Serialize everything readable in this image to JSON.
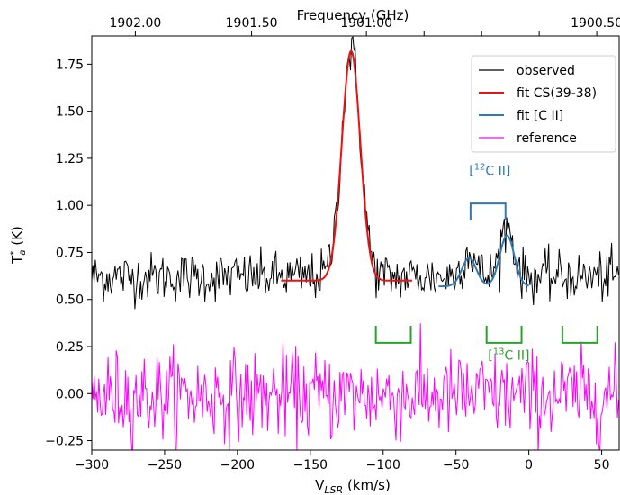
{
  "chart_data": {
    "type": "line",
    "xlabel_main": "V",
    "xlabel_sub": "LSR",
    "xlabel_unit": " (km/s)",
    "ylabel_main": "T",
    "ylabel_sup": "*",
    "ylabel_sub": "a",
    "ylabel_unit": "  (K)",
    "top_xlabel": "Frequency (GHz)",
    "xlim": [
      -300,
      62
    ],
    "ylim": [
      -0.3,
      1.9
    ],
    "x_ticks": [
      -300,
      -250,
      -200,
      -150,
      -100,
      -50,
      0,
      50
    ],
    "x_tick_labels": [
      "−300",
      "−250",
      "−200",
      "−150",
      "−100",
      "−50",
      "0",
      "50"
    ],
    "y_ticks": [
      -0.25,
      0.0,
      0.25,
      0.5,
      0.75,
      1.0,
      1.25,
      1.5,
      1.75
    ],
    "y_tick_labels": [
      "−0.25",
      "0.00",
      "0.25",
      "0.50",
      "0.75",
      "1.00",
      "1.25",
      "1.50",
      "1.75"
    ],
    "top_ticks": [
      {
        "x": -270.1,
        "label": "1902.00"
      },
      {
        "x": -190.3,
        "label": "1901.50"
      },
      {
        "x": -111.5,
        "label": "1901.00"
      },
      {
        "x": -32.4,
        "label": ""
      },
      {
        "x": 46.6,
        "label": "1900.50"
      }
    ],
    "top_minor_ticks": [
      -71.9,
      7.1
    ],
    "top_label_1900_50_x": -11.5,
    "series": [
      {
        "name": "observed",
        "color": "#000000",
        "kind": "noise",
        "baseline": 0.62,
        "noise": 0.065,
        "x_start": -300,
        "x_end": 62,
        "step": 0.8,
        "gaussians": [
          {
            "center": -122,
            "amp": 1.2,
            "sigma": 6.5
          },
          {
            "center": -41,
            "amp": 0.13,
            "sigma": 4.5
          },
          {
            "center": -15,
            "amp": 0.27,
            "sigma": 4.5
          }
        ]
      },
      {
        "name": "fit CS(39-38)",
        "color": "#ee1111",
        "kind": "fit",
        "baseline": 0.6,
        "x_start": -170,
        "x_end": -80,
        "step": 0.5,
        "gaussians": [
          {
            "center": -122,
            "amp": 1.22,
            "sigma": 6.3
          }
        ]
      },
      {
        "name": "fit [C II]",
        "color": "#2c7bb6",
        "kind": "fit",
        "baseline": 0.57,
        "x_start": -62,
        "x_end": 0,
        "step": 0.5,
        "gaussians": [
          {
            "center": -41,
            "amp": 0.15,
            "sigma": 5
          },
          {
            "center": -15,
            "amp": 0.27,
            "sigma": 5
          }
        ]
      },
      {
        "name": "reference",
        "color": "#ff00ff",
        "kind": "noise",
        "baseline": -0.01,
        "noise": 0.13,
        "x_start": -300,
        "x_end": 62,
        "step": 0.8,
        "gaussians": []
      }
    ],
    "legend": {
      "placement": "top-right",
      "entries": [
        {
          "label": "observed",
          "color": "#000000"
        },
        {
          "label": "fit CS(39-38)",
          "color": "#ee1111"
        },
        {
          "label": "fit [C II]",
          "color": "#2c7bb6"
        },
        {
          "label": "reference",
          "color": "#ff00ff"
        }
      ]
    },
    "annotations": {
      "c12": {
        "label_pre": "[",
        "label_sup": "12",
        "label_post": "C II]",
        "color": "#2c7bb6",
        "bracket": {
          "x1": -40,
          "x2": -16,
          "y_top": 1.02,
          "y_bottom": 0.99
        }
      },
      "c13": {
        "label_pre": "[",
        "label_sup": "13",
        "label_post": "C II]",
        "color": "#2ca02c",
        "brackets": [
          {
            "x1": -105,
            "x2": -81
          },
          {
            "x1": -29,
            "x2": -5
          },
          {
            "x1": 23,
            "x2": 47
          }
        ],
        "y_top": 0.33,
        "y_bottom": 0.33
      }
    }
  }
}
